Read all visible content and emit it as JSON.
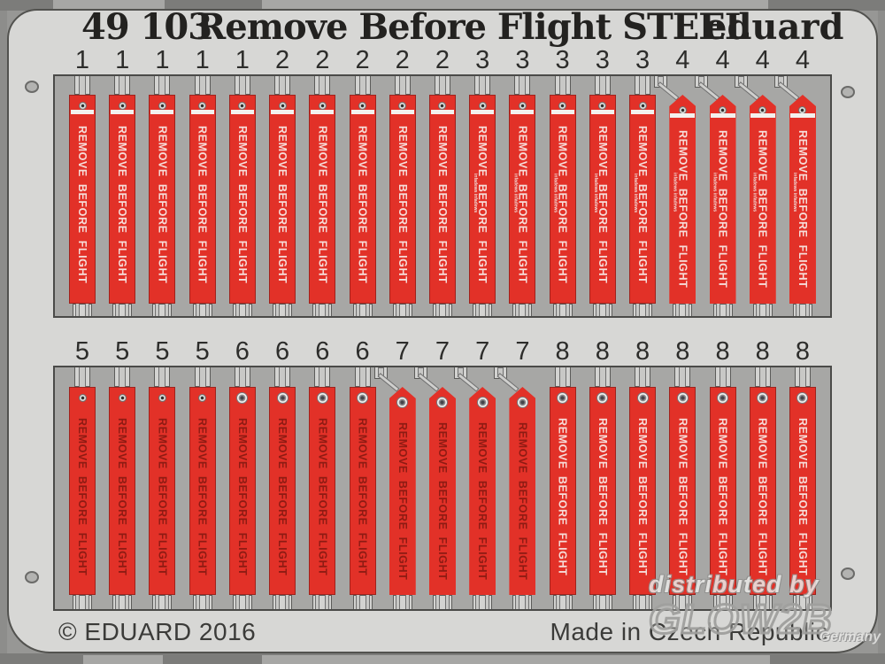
{
  "header": {
    "part_number": "49 103",
    "title": "Remove Before Flight STEEL",
    "brand": "eduard"
  },
  "footer": {
    "copyright": "© EDUARD 2016",
    "made_in": "Made in Czech Republic"
  },
  "watermark": {
    "distributed_by": "distributed by",
    "brand": "GLOW2B",
    "country": "Germany"
  },
  "ribbons": {
    "streamer_text": "REMOVE BEFORE FLIGHT",
    "microtext": "infadews infadews",
    "rows": [
      {
        "numbers": [
          1,
          1,
          1,
          1,
          1,
          2,
          2,
          2,
          2,
          2,
          3,
          3,
          3,
          3,
          3,
          4,
          4,
          4,
          4
        ]
      },
      {
        "numbers": [
          5,
          5,
          5,
          5,
          6,
          6,
          6,
          6,
          7,
          7,
          7,
          7,
          8,
          8,
          8,
          8,
          8,
          8,
          8
        ]
      }
    ],
    "types": {
      "1": {
        "top": "flat",
        "stripe": true,
        "text_color": "light",
        "grommet": "small",
        "microtext": false,
        "cord": false
      },
      "2": {
        "top": "flat",
        "stripe": true,
        "text_color": "light",
        "grommet": "small",
        "microtext": false,
        "cord": false
      },
      "3": {
        "top": "flat",
        "stripe": true,
        "text_color": "light",
        "grommet": "small",
        "microtext": true,
        "cord": false
      },
      "4": {
        "top": "pointed",
        "stripe": true,
        "text_color": "light",
        "grommet": "small",
        "microtext": true,
        "cord": true
      },
      "5": {
        "top": "flat",
        "stripe": false,
        "text_color": "dark",
        "grommet": "small",
        "microtext": false,
        "cord": false
      },
      "6": {
        "top": "flat",
        "stripe": false,
        "text_color": "dark",
        "grommet": "large",
        "microtext": false,
        "cord": false
      },
      "7": {
        "top": "pointed",
        "stripe": false,
        "text_color": "dark",
        "grommet": "large",
        "microtext": false,
        "cord": true
      },
      "8": {
        "top": "flat",
        "stripe": false,
        "text_color": "light",
        "grommet": "large",
        "microtext": false,
        "cord": false
      }
    }
  },
  "colors": {
    "ribbon_red": "#e23128",
    "streamer_text_light": "#f6ddd9",
    "streamer_text_dark": "#8e1b13",
    "plate_gray": "#d7d7d5",
    "panel_gray": "#a7a7a5",
    "background_gray": "#979795"
  }
}
